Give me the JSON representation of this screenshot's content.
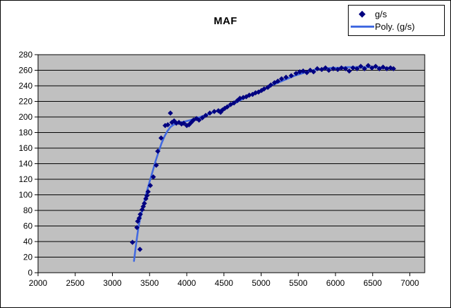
{
  "chart_data": {
    "type": "scatter",
    "title": "MAF",
    "xlabel": "",
    "ylabel": "",
    "xlim": [
      2000,
      7200
    ],
    "ylim": [
      0,
      280
    ],
    "x_ticks": [
      2000,
      2500,
      3000,
      3500,
      4000,
      4500,
      5000,
      5500,
      6000,
      6500,
      7000
    ],
    "y_ticks": [
      0,
      20,
      40,
      60,
      80,
      100,
      120,
      140,
      160,
      180,
      200,
      220,
      240,
      260,
      280
    ],
    "grid": "horizontal",
    "legend_position": "top-right",
    "colors": {
      "plot_bg": "#C0C0C0",
      "grid_color": "#000000",
      "axis_color": "#000000",
      "marker_color": "#000080",
      "trend_color": "#4169E1",
      "text_color": "#000000",
      "outer_bg": "#FFFFFF"
    },
    "legend": {
      "entries": [
        {
          "label": "g/s",
          "type": "marker"
        },
        {
          "label": "Poly. (g/s)",
          "type": "line"
        }
      ]
    },
    "series": [
      {
        "name": "g/s",
        "type": "scatter",
        "marker": "diamond",
        "points": [
          [
            3270,
            39
          ],
          [
            3370,
            30
          ],
          [
            3330,
            58
          ],
          [
            3340,
            66
          ],
          [
            3360,
            70
          ],
          [
            3375,
            75
          ],
          [
            3400,
            81
          ],
          [
            3415,
            85
          ],
          [
            3430,
            89
          ],
          [
            3450,
            95
          ],
          [
            3465,
            99
          ],
          [
            3480,
            104
          ],
          [
            3510,
            112
          ],
          [
            3550,
            123
          ],
          [
            3590,
            138
          ],
          [
            3610,
            156
          ],
          [
            3655,
            173
          ],
          [
            3710,
            189
          ],
          [
            3745,
            190
          ],
          [
            3780,
            205
          ],
          [
            3800,
            193
          ],
          [
            3830,
            195
          ],
          [
            3860,
            192
          ],
          [
            3895,
            193
          ],
          [
            3930,
            191
          ],
          [
            3960,
            192
          ],
          [
            4000,
            189
          ],
          [
            4030,
            190
          ],
          [
            4060,
            193
          ],
          [
            4090,
            196
          ],
          [
            4130,
            198
          ],
          [
            4165,
            196
          ],
          [
            4210,
            199
          ],
          [
            4255,
            202
          ],
          [
            4310,
            205
          ],
          [
            4370,
            207
          ],
          [
            4425,
            208
          ],
          [
            4455,
            206
          ],
          [
            4480,
            209
          ],
          [
            4510,
            211
          ],
          [
            4545,
            213
          ],
          [
            4590,
            216
          ],
          [
            4635,
            218
          ],
          [
            4680,
            221
          ],
          [
            4715,
            224
          ],
          [
            4760,
            225
          ],
          [
            4800,
            226
          ],
          [
            4840,
            228
          ],
          [
            4885,
            229
          ],
          [
            4925,
            231
          ],
          [
            4965,
            232
          ],
          [
            5005,
            234
          ],
          [
            5040,
            236
          ],
          [
            5090,
            238
          ],
          [
            5130,
            241
          ],
          [
            5180,
            244
          ],
          [
            5225,
            246
          ],
          [
            5275,
            249
          ],
          [
            5335,
            251
          ],
          [
            5405,
            253
          ],
          [
            5470,
            256
          ],
          [
            5520,
            258
          ],
          [
            5565,
            259
          ],
          [
            5615,
            257
          ],
          [
            5660,
            260
          ],
          [
            5705,
            258
          ],
          [
            5755,
            262
          ],
          [
            5815,
            261
          ],
          [
            5865,
            263
          ],
          [
            5910,
            260
          ],
          [
            5970,
            262
          ],
          [
            6030,
            261
          ],
          [
            6080,
            263
          ],
          [
            6135,
            262
          ],
          [
            6185,
            259
          ],
          [
            6235,
            263
          ],
          [
            6290,
            262
          ],
          [
            6340,
            265
          ],
          [
            6390,
            262
          ],
          [
            6440,
            266
          ],
          [
            6490,
            263
          ],
          [
            6540,
            265
          ],
          [
            6590,
            262
          ],
          [
            6640,
            264
          ],
          [
            6690,
            262
          ],
          [
            6740,
            263
          ],
          [
            6780,
            262
          ]
        ]
      },
      {
        "name": "Poly. (g/s)",
        "type": "line",
        "points": [
          [
            3290,
            15
          ],
          [
            3310,
            30
          ],
          [
            3330,
            45
          ],
          [
            3350,
            58
          ],
          [
            3370,
            68
          ],
          [
            3400,
            80
          ],
          [
            3430,
            92
          ],
          [
            3460,
            103
          ],
          [
            3500,
            117
          ],
          [
            3540,
            130
          ],
          [
            3580,
            143
          ],
          [
            3620,
            155
          ],
          [
            3660,
            166
          ],
          [
            3700,
            175
          ],
          [
            3740,
            182
          ],
          [
            3780,
            187
          ],
          [
            3820,
            190
          ],
          [
            3870,
            192
          ],
          [
            3920,
            193
          ],
          [
            3970,
            194
          ],
          [
            4050,
            196
          ],
          [
            4150,
            199
          ],
          [
            4250,
            202
          ],
          [
            4350,
            206
          ],
          [
            4450,
            209
          ],
          [
            4550,
            213
          ],
          [
            4650,
            218
          ],
          [
            4750,
            223
          ],
          [
            4850,
            228
          ],
          [
            4950,
            232
          ],
          [
            5050,
            236
          ],
          [
            5150,
            241
          ],
          [
            5250,
            245
          ],
          [
            5350,
            249
          ],
          [
            5450,
            253
          ],
          [
            5550,
            256
          ],
          [
            5650,
            259
          ],
          [
            5750,
            261
          ],
          [
            5850,
            262
          ],
          [
            5950,
            263
          ],
          [
            6050,
            263
          ],
          [
            6150,
            264
          ],
          [
            6250,
            264
          ],
          [
            6350,
            264
          ],
          [
            6450,
            264
          ],
          [
            6550,
            264
          ],
          [
            6650,
            263
          ],
          [
            6750,
            263
          ],
          [
            6790,
            262
          ]
        ]
      }
    ]
  }
}
